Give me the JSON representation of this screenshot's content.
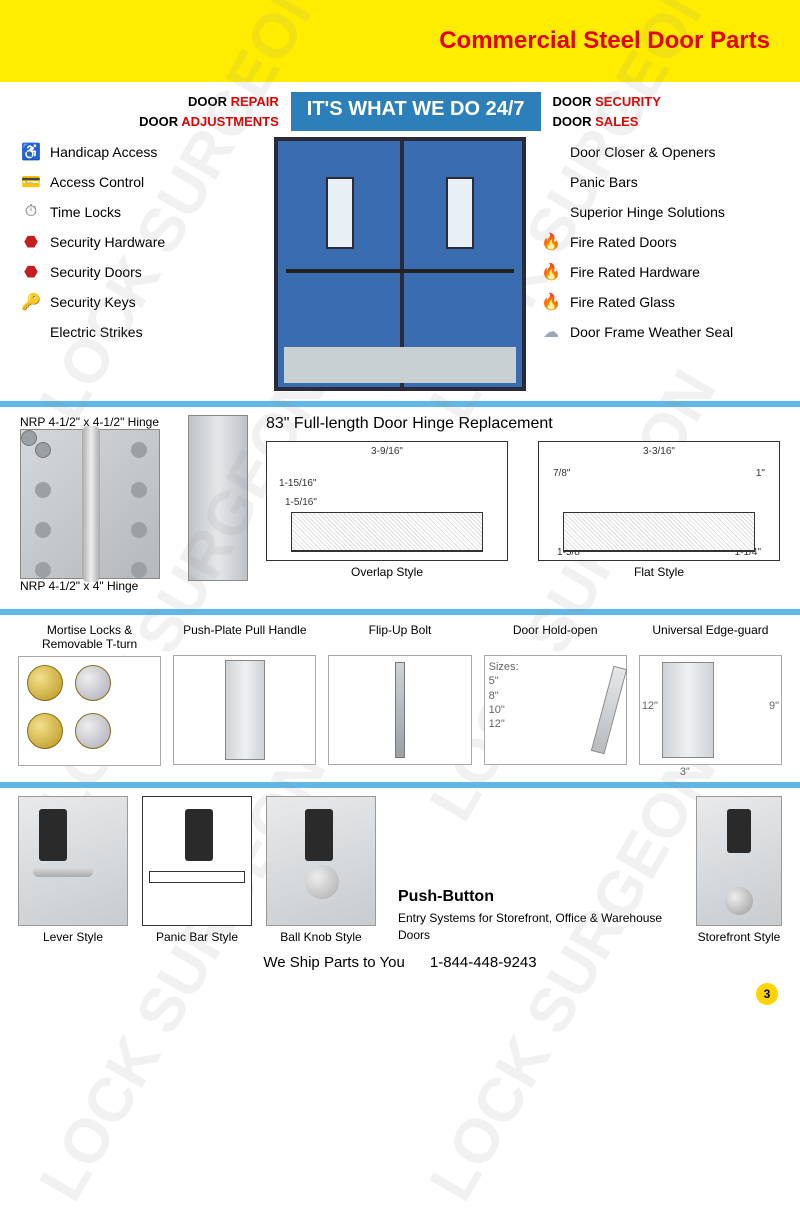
{
  "header": {
    "title": "Commercial Steel Door Parts",
    "band_color": "#ffec00",
    "title_color": "#e60000"
  },
  "services": {
    "left": [
      {
        "prefix": "DOOR ",
        "red": "REPAIR"
      },
      {
        "prefix": "DOOR ",
        "red": "ADJUSTMENTS"
      }
    ],
    "tagline": "IT'S WHAT WE DO 24/7",
    "right": [
      {
        "prefix": "DOOR ",
        "red": "SECURITY"
      },
      {
        "prefix": "DOOR ",
        "red": "SALES"
      }
    ]
  },
  "features_left": [
    {
      "icon": "♿",
      "icon_color": "#1759b5",
      "label": "Handicap Access"
    },
    {
      "icon": "💳",
      "icon_color": "#e6a817",
      "label": "Access Control"
    },
    {
      "icon": "⏱",
      "icon_color": "#666",
      "label": "Time Locks"
    },
    {
      "icon": "⬣",
      "icon_color": "#c41e1e",
      "label": "Security Hardware"
    },
    {
      "icon": "⬣",
      "icon_color": "#c41e1e",
      "label": "Security Doors"
    },
    {
      "icon": "🔑",
      "icon_color": "#888",
      "label": "Security Keys"
    },
    {
      "icon": "",
      "icon_color": "#888",
      "label": "Electric Strikes"
    }
  ],
  "features_right": [
    {
      "icon": "",
      "label": "Door Closer & Openers"
    },
    {
      "icon": "",
      "label": "Panic Bars"
    },
    {
      "icon": "",
      "label": "Superior Hinge Solutions"
    },
    {
      "icon": "🔥",
      "icon_color": "#ff6a00",
      "label": "Fire Rated Doors"
    },
    {
      "icon": "🔥",
      "icon_color": "#ff6a00",
      "label": "Fire Rated Hardware"
    },
    {
      "icon": "🔥",
      "icon_color": "#ff6a00",
      "label": "Fire Rated Glass"
    },
    {
      "icon": "☁",
      "icon_color": "#9aa8b5",
      "label": "Door Frame Weather Seal"
    }
  ],
  "section2": {
    "hinge_top": "NRP 4-1/2\" x 4-1/2\" Hinge",
    "hinge_bottom": "NRP 4-1/2\" x 4\" Hinge",
    "title83": "83\" Full-length Door Hinge Replacement",
    "diagram1": {
      "label": "Overlap Style",
      "dims": {
        "top": "3-9/16\"",
        "inner": "1-15/16\"",
        "bottom": "1-5/16\""
      }
    },
    "diagram2": {
      "label": "Flat Style",
      "dims": {
        "top": "3-3/16\"",
        "left": "7/8\"",
        "right": "1\"",
        "botleft": "1-5/8\"",
        "botright": "1-1/4\""
      }
    }
  },
  "section3": [
    {
      "title": "Mortise Locks & Removable T-turn",
      "kind": "cylinders"
    },
    {
      "title": "Push-Plate Pull Handle",
      "kind": "pushplate"
    },
    {
      "title": "Flip-Up Bolt",
      "kind": "flipbolt"
    },
    {
      "title": "Door Hold-open",
      "kind": "holdopen",
      "sizes_label": "Sizes:",
      "sizes": [
        "5\"",
        "8\"",
        "10\"",
        "12\""
      ]
    },
    {
      "title": "Universal Edge-guard",
      "kind": "edgeguard",
      "dim_h": "12\"",
      "dim_h2": "9\"",
      "dim_w": "3\""
    }
  ],
  "section4": {
    "styles": [
      {
        "label": "Lever Style",
        "kind": "lever"
      },
      {
        "label": "Panic Bar Style",
        "kind": "panic"
      },
      {
        "label": "Ball Knob Style",
        "kind": "knob"
      }
    ],
    "pushbutton": {
      "title": "Push-Button",
      "desc": "Entry Systems for Storefront, Office & Warehouse Doors"
    },
    "storefront_label": "Storefront Style"
  },
  "footer": {
    "ship": "We Ship Parts to You",
    "phone": "1-844-448-9243",
    "page": "3"
  },
  "watermark_text": "LOCK SURGEON",
  "colors": {
    "accent_blue": "#2c7fb8",
    "sep_blue": "#5fb8e8"
  }
}
